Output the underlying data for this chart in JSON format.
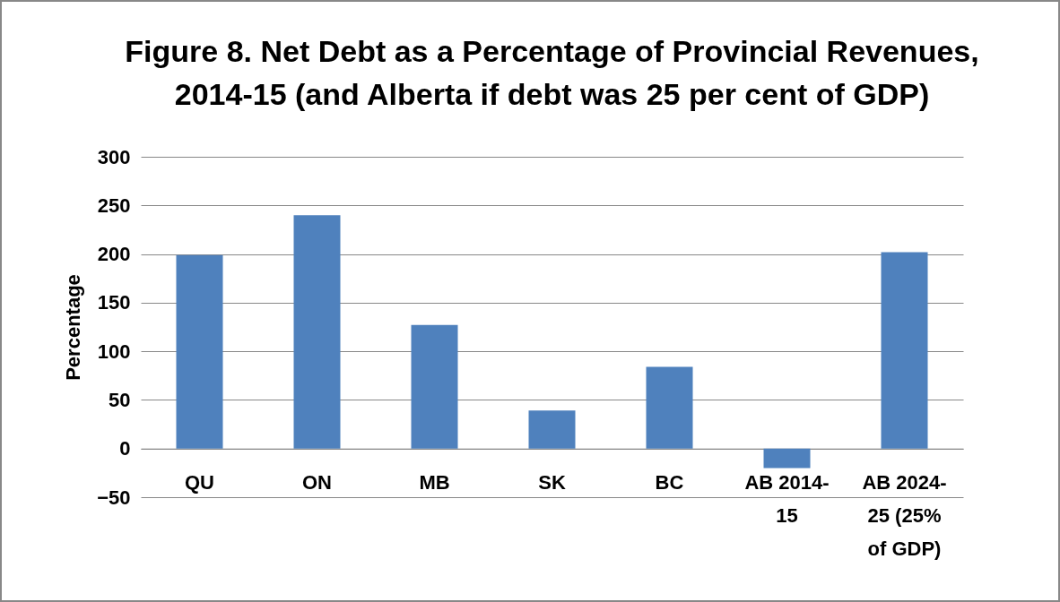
{
  "chart_data": {
    "type": "bar",
    "title": "Figure 8. Net Debt as a Percentage of Provincial Revenues, 2014-15 (and Alberta if debt was 25 per cent of GDP)",
    "ylabel": "Percentage",
    "categories": [
      "QU",
      "ON",
      "MB",
      "SK",
      "BC",
      "AB 2014-15",
      "AB 2024-25 (25% of GDP)"
    ],
    "values": [
      199,
      240,
      127,
      39,
      84,
      -20,
      202
    ],
    "color": "#4f81bd",
    "ylim": [
      -50,
      300
    ],
    "yticks": [
      -50,
      0,
      50,
      100,
      150,
      200,
      250,
      300
    ],
    "grid": "y"
  }
}
